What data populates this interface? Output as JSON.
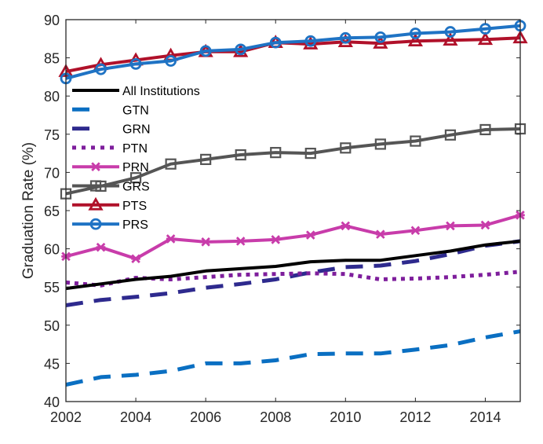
{
  "chart_data": {
    "type": "line",
    "title": "",
    "xlabel": "",
    "ylabel": "Graduation Rate (%)",
    "xlim": [
      2002,
      2015
    ],
    "ylim": [
      40,
      90
    ],
    "x_ticks": [
      2002,
      2004,
      2006,
      2008,
      2010,
      2012,
      2014
    ],
    "y_ticks": [
      40,
      45,
      50,
      55,
      60,
      65,
      70,
      75,
      80,
      85,
      90
    ],
    "grid": false,
    "legend_position": "upper-left",
    "x": [
      2002,
      2003,
      2004,
      2005,
      2006,
      2007,
      2008,
      2009,
      2010,
      2011,
      2012,
      2013,
      2014,
      2015
    ],
    "series": [
      {
        "name": "All Institutions",
        "color": "#000000",
        "style": "solid",
        "marker": "none",
        "values": [
          54.8,
          55.4,
          56.0,
          56.4,
          57.1,
          57.4,
          57.7,
          58.3,
          58.5,
          58.5,
          59.1,
          59.7,
          60.5,
          61.0
        ]
      },
      {
        "name": "GTN",
        "color": "#0a6fc2",
        "style": "dashed",
        "marker": "none",
        "values": [
          42.2,
          43.2,
          43.5,
          44.0,
          45.0,
          45.0,
          45.4,
          46.2,
          46.3,
          46.3,
          46.8,
          47.4,
          48.4,
          49.2
        ]
      },
      {
        "name": "GRN",
        "color": "#2e2a8e",
        "style": "dashed",
        "marker": "none",
        "values": [
          52.6,
          53.3,
          53.7,
          54.2,
          54.9,
          55.4,
          56.0,
          56.9,
          57.6,
          57.8,
          58.4,
          59.3,
          60.4,
          61.0
        ]
      },
      {
        "name": "PTN",
        "color": "#7e1e9c",
        "style": "dotted",
        "marker": "none",
        "values": [
          55.6,
          55.2,
          56.2,
          56.0,
          56.3,
          56.6,
          56.7,
          56.8,
          56.7,
          56.0,
          56.1,
          56.3,
          56.6,
          57.0
        ]
      },
      {
        "name": "PRN",
        "color": "#c83caa",
        "style": "solid",
        "marker": "asterisk",
        "values": [
          59.0,
          60.2,
          58.7,
          61.3,
          60.9,
          61.0,
          61.2,
          61.8,
          63.0,
          61.9,
          62.4,
          63.0,
          63.1,
          64.4
        ]
      },
      {
        "name": "GRS",
        "color": "#555555",
        "style": "solid",
        "marker": "square",
        "values": [
          67.2,
          68.2,
          69.3,
          71.1,
          71.7,
          72.3,
          72.6,
          72.5,
          73.2,
          73.7,
          74.1,
          74.9,
          75.6,
          75.7
        ]
      },
      {
        "name": "PTS",
        "color": "#b0112a",
        "style": "solid",
        "marker": "triangle",
        "values": [
          83.2,
          84.1,
          84.7,
          85.3,
          85.8,
          85.8,
          87.0,
          86.8,
          87.1,
          86.9,
          87.2,
          87.3,
          87.4,
          87.6
        ]
      },
      {
        "name": "PRS",
        "color": "#1f73c4",
        "style": "solid",
        "marker": "circle",
        "values": [
          82.3,
          83.5,
          84.2,
          84.6,
          85.9,
          86.1,
          87.0,
          87.2,
          87.6,
          87.7,
          88.2,
          88.4,
          88.8,
          89.2
        ]
      }
    ]
  }
}
